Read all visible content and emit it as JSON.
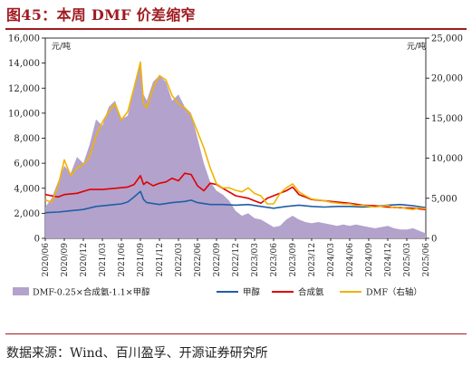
{
  "title": "图45：本周 DMF 价差缩窄",
  "source": "数据来源：Wind、百川盈孚、开源证券研究所",
  "chart_data": {
    "type": "line",
    "y_left_unit": "元/吨",
    "y_right_unit": "元/吨",
    "y_left_ticks": [
      0,
      2000,
      4000,
      6000,
      8000,
      10000,
      12000,
      14000,
      16000
    ],
    "y_right_ticks": [
      0,
      5000,
      10000,
      15000,
      20000,
      25000
    ],
    "ylim_left": [
      0,
      16000
    ],
    "ylim_right": [
      0,
      25000
    ],
    "x_ticks": [
      "2020/06",
      "2020/09",
      "2020/12",
      "2021/03",
      "2021/06",
      "2021/09",
      "2021/12",
      "2022/03",
      "2022/06",
      "2022/09",
      "2022/12",
      "2023/03",
      "2023/06",
      "2023/09",
      "2023/12",
      "2024/03",
      "2024/06",
      "2024/09",
      "2024/12",
      "2025/03",
      "2025/06"
    ],
    "x_tick_index": [
      0,
      3,
      6,
      9,
      12,
      15,
      18,
      21,
      24,
      27,
      30,
      33,
      36,
      39,
      42,
      45,
      48,
      51,
      54,
      57,
      60
    ],
    "legend_position": "bottom",
    "series": [
      {
        "name": "DMF-0.25×合成氨-1.1×甲醇",
        "axis": "left",
        "kind": "area",
        "color": "#b3a2cc",
        "points": [
          [
            0,
            2500
          ],
          [
            1,
            3200
          ],
          [
            2,
            4500
          ],
          [
            3,
            5800
          ],
          [
            4,
            5200
          ],
          [
            5,
            6500
          ],
          [
            6,
            6000
          ],
          [
            7,
            7500
          ],
          [
            8,
            9500
          ],
          [
            9,
            9000
          ],
          [
            10,
            10500
          ],
          [
            11,
            11000
          ],
          [
            12,
            9500
          ],
          [
            13,
            9800
          ],
          [
            14,
            12000
          ],
          [
            15,
            14000
          ],
          [
            15.5,
            11500
          ],
          [
            16,
            11000
          ],
          [
            17,
            12500
          ],
          [
            18,
            13000
          ],
          [
            19,
            12500
          ],
          [
            20,
            11000
          ],
          [
            21,
            11500
          ],
          [
            22,
            10500
          ],
          [
            23,
            10000
          ],
          [
            24,
            8000
          ],
          [
            25,
            6000
          ],
          [
            26,
            4500
          ],
          [
            27,
            3800
          ],
          [
            28,
            3500
          ],
          [
            29,
            3000
          ],
          [
            30,
            2200
          ],
          [
            31,
            1800
          ],
          [
            32,
            2000
          ],
          [
            33,
            1600
          ],
          [
            34,
            1500
          ],
          [
            35,
            1200
          ],
          [
            36,
            900
          ],
          [
            37,
            1000
          ],
          [
            38,
            1500
          ],
          [
            39,
            1800
          ],
          [
            40,
            1500
          ],
          [
            41,
            1300
          ],
          [
            42,
            1200
          ],
          [
            43,
            1300
          ],
          [
            44,
            1200
          ],
          [
            45,
            1100
          ],
          [
            46,
            1000
          ],
          [
            47,
            1100
          ],
          [
            48,
            1000
          ],
          [
            49,
            1100
          ],
          [
            50,
            1000
          ],
          [
            51,
            900
          ],
          [
            52,
            800
          ],
          [
            53,
            900
          ],
          [
            54,
            1000
          ],
          [
            55,
            800
          ],
          [
            56,
            700
          ],
          [
            57,
            700
          ],
          [
            58,
            800
          ],
          [
            59,
            600
          ],
          [
            60,
            400
          ]
        ]
      },
      {
        "name": "甲醇",
        "axis": "left",
        "kind": "line",
        "color": "#1f5fa6",
        "points": [
          [
            0,
            2050
          ],
          [
            2,
            2100
          ],
          [
            4,
            2200
          ],
          [
            6,
            2300
          ],
          [
            8,
            2550
          ],
          [
            10,
            2650
          ],
          [
            12,
            2750
          ],
          [
            13,
            2900
          ],
          [
            14,
            3300
          ],
          [
            15,
            3750
          ],
          [
            15.5,
            3100
          ],
          [
            16,
            2850
          ],
          [
            18,
            2700
          ],
          [
            20,
            2850
          ],
          [
            22,
            2950
          ],
          [
            23,
            3050
          ],
          [
            24,
            2850
          ],
          [
            26,
            2700
          ],
          [
            28,
            2700
          ],
          [
            30,
            2650
          ],
          [
            32,
            2700
          ],
          [
            34,
            2550
          ],
          [
            36,
            2400
          ],
          [
            38,
            2550
          ],
          [
            40,
            2650
          ],
          [
            42,
            2550
          ],
          [
            44,
            2500
          ],
          [
            46,
            2550
          ],
          [
            48,
            2550
          ],
          [
            50,
            2500
          ],
          [
            52,
            2550
          ],
          [
            54,
            2650
          ],
          [
            56,
            2700
          ],
          [
            58,
            2600
          ],
          [
            60,
            2450
          ]
        ]
      },
      {
        "name": "合成氨",
        "axis": "left",
        "kind": "line",
        "color": "#e00000",
        "points": [
          [
            0,
            3500
          ],
          [
            2,
            3300
          ],
          [
            3,
            3500
          ],
          [
            5,
            3600
          ],
          [
            7,
            3900
          ],
          [
            9,
            3900
          ],
          [
            11,
            4000
          ],
          [
            13,
            4100
          ],
          [
            14,
            4300
          ],
          [
            15,
            5000
          ],
          [
            15.5,
            4300
          ],
          [
            16,
            4500
          ],
          [
            17,
            4200
          ],
          [
            18,
            4400
          ],
          [
            19,
            4500
          ],
          [
            20,
            4800
          ],
          [
            21,
            4600
          ],
          [
            22,
            5200
          ],
          [
            23,
            5100
          ],
          [
            24,
            4200
          ],
          [
            25,
            3800
          ],
          [
            26,
            4400
          ],
          [
            27,
            4300
          ],
          [
            28,
            4000
          ],
          [
            30,
            3400
          ],
          [
            32,
            3200
          ],
          [
            33,
            3000
          ],
          [
            34,
            2800
          ],
          [
            35,
            3200
          ],
          [
            36,
            3400
          ],
          [
            37,
            3600
          ],
          [
            38,
            3800
          ],
          [
            39,
            4100
          ],
          [
            40,
            3500
          ],
          [
            41,
            3300
          ],
          [
            42,
            3100
          ],
          [
            44,
            3000
          ],
          [
            46,
            2900
          ],
          [
            48,
            2800
          ],
          [
            50,
            2650
          ],
          [
            52,
            2600
          ],
          [
            54,
            2500
          ],
          [
            56,
            2450
          ],
          [
            58,
            2400
          ],
          [
            60,
            2300
          ]
        ]
      },
      {
        "name": "DMF（右轴）",
        "axis": "right",
        "kind": "line",
        "color": "#f2b300",
        "points": [
          [
            0,
            4800
          ],
          [
            1,
            4500
          ],
          [
            2,
            6500
          ],
          [
            3,
            9800
          ],
          [
            4,
            7800
          ],
          [
            5,
            8800
          ],
          [
            6,
            9200
          ],
          [
            7,
            10200
          ],
          [
            8,
            12800
          ],
          [
            9,
            14500
          ],
          [
            10,
            15800
          ],
          [
            11,
            16800
          ],
          [
            12,
            14800
          ],
          [
            13,
            15800
          ],
          [
            14,
            18800
          ],
          [
            15,
            22000
          ],
          [
            15.5,
            16800
          ],
          [
            16,
            16300
          ],
          [
            17,
            18800
          ],
          [
            18,
            20300
          ],
          [
            19,
            19800
          ],
          [
            20,
            17800
          ],
          [
            21,
            16800
          ],
          [
            22,
            16300
          ],
          [
            23,
            15300
          ],
          [
            24,
            13300
          ],
          [
            25,
            11300
          ],
          [
            26,
            8800
          ],
          [
            27,
            6800
          ],
          [
            28,
            6300
          ],
          [
            29,
            6300
          ],
          [
            30,
            6000
          ],
          [
            31,
            5800
          ],
          [
            32,
            6300
          ],
          [
            33,
            5600
          ],
          [
            34,
            5300
          ],
          [
            35,
            4300
          ],
          [
            36,
            4300
          ],
          [
            37,
            5600
          ],
          [
            38,
            6300
          ],
          [
            39,
            6800
          ],
          [
            40,
            5800
          ],
          [
            41,
            5300
          ],
          [
            42,
            4900
          ],
          [
            43,
            4800
          ],
          [
            44,
            4700
          ],
          [
            45,
            4500
          ],
          [
            46,
            4400
          ],
          [
            47,
            4300
          ],
          [
            48,
            4300
          ],
          [
            49,
            4100
          ],
          [
            50,
            4100
          ],
          [
            51,
            4000
          ],
          [
            52,
            3900
          ],
          [
            53,
            4000
          ],
          [
            54,
            4100
          ],
          [
            55,
            3800
          ],
          [
            56,
            3900
          ],
          [
            57,
            3700
          ],
          [
            58,
            3600
          ],
          [
            59,
            3800
          ],
          [
            60,
            3700
          ]
        ]
      }
    ]
  }
}
